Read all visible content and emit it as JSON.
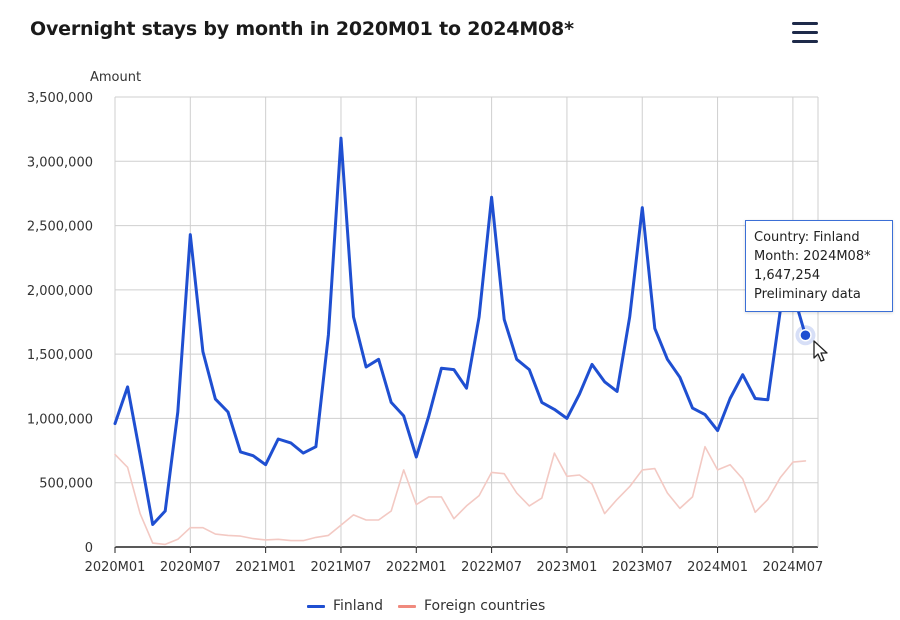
{
  "title": "Overnight stays by month in 2020M01 to 2024M08*",
  "menu_icon": "hamburger-menu-icon",
  "chart_data": {
    "type": "line",
    "ylabel": "Amount",
    "xlabel": "",
    "ylim": [
      0,
      3500000
    ],
    "yticks": [
      0,
      500000,
      1000000,
      1500000,
      2000000,
      2500000,
      3000000,
      3500000
    ],
    "ytick_labels": [
      "0",
      "500,000",
      "1,000,000",
      "1,500,000",
      "2,000,000",
      "2,500,000",
      "3,000,000",
      "3,500,000"
    ],
    "x": [
      "2020M01",
      "2020M02",
      "2020M03",
      "2020M04",
      "2020M05",
      "2020M06",
      "2020M07",
      "2020M08",
      "2020M09",
      "2020M10",
      "2020M11",
      "2020M12",
      "2021M01",
      "2021M02",
      "2021M03",
      "2021M04",
      "2021M05",
      "2021M06",
      "2021M07",
      "2021M08",
      "2021M09",
      "2021M10",
      "2021M11",
      "2021M12",
      "2022M01",
      "2022M02",
      "2022M03",
      "2022M04",
      "2022M05",
      "2022M06",
      "2022M07",
      "2022M08",
      "2022M09",
      "2022M10",
      "2022M11",
      "2022M12",
      "2023M01",
      "2023M02",
      "2023M03",
      "2023M04",
      "2023M05",
      "2023M06",
      "2023M07",
      "2023M08",
      "2023M09",
      "2023M10",
      "2023M11",
      "2023M12",
      "2024M01",
      "2024M02",
      "2024M03",
      "2024M04",
      "2024M05",
      "2024M06",
      "2024M07",
      "2024M08*"
    ],
    "xtick_labels": [
      "2020M01",
      "2020M07",
      "2021M01",
      "2021M07",
      "2022M01",
      "2022M07",
      "2023M01",
      "2023M07",
      "2024M01",
      "2024M07"
    ],
    "xtick_indices": [
      0,
      6,
      12,
      18,
      24,
      30,
      36,
      42,
      48,
      54
    ],
    "grid": true,
    "legend": "bottom",
    "series": [
      {
        "name": "Finland",
        "color": "#1f4fd1",
        "values": [
          960000,
          1245000,
          720000,
          175000,
          280000,
          1050000,
          2430000,
          1520000,
          1150000,
          1050000,
          740000,
          710000,
          640000,
          840000,
          810000,
          730000,
          780000,
          1650000,
          3180000,
          1790000,
          1400000,
          1460000,
          1125000,
          1020000,
          700000,
          1020000,
          1390000,
          1380000,
          1235000,
          1790000,
          2720000,
          1770000,
          1460000,
          1380000,
          1125000,
          1070000,
          1000000,
          1190000,
          1420000,
          1285000,
          1210000,
          1790000,
          2640000,
          1700000,
          1460000,
          1320000,
          1080000,
          1030000,
          905000,
          1155000,
          1340000,
          1155000,
          1145000,
          1840000,
          1980000,
          1647254
        ]
      },
      {
        "name": "Foreign countries",
        "color": "#f3c9c3",
        "values": [
          720000,
          620000,
          260000,
          30000,
          20000,
          60000,
          150000,
          150000,
          100000,
          90000,
          85000,
          65000,
          55000,
          60000,
          50000,
          50000,
          75000,
          90000,
          170000,
          250000,
          210000,
          210000,
          280000,
          600000,
          330000,
          390000,
          390000,
          220000,
          320000,
          400000,
          580000,
          570000,
          420000,
          320000,
          380000,
          730000,
          550000,
          560000,
          490000,
          260000,
          370000,
          470000,
          600000,
          610000,
          420000,
          300000,
          390000,
          780000,
          600000,
          640000,
          530000,
          270000,
          370000,
          540000,
          660000,
          670000
        ]
      }
    ],
    "highlight": {
      "series": 0,
      "index": 55
    }
  },
  "tooltip": {
    "country": "Country: Finland",
    "month": "Month: 2024M08*",
    "value": "1,647,254",
    "note": "Preliminary data"
  }
}
